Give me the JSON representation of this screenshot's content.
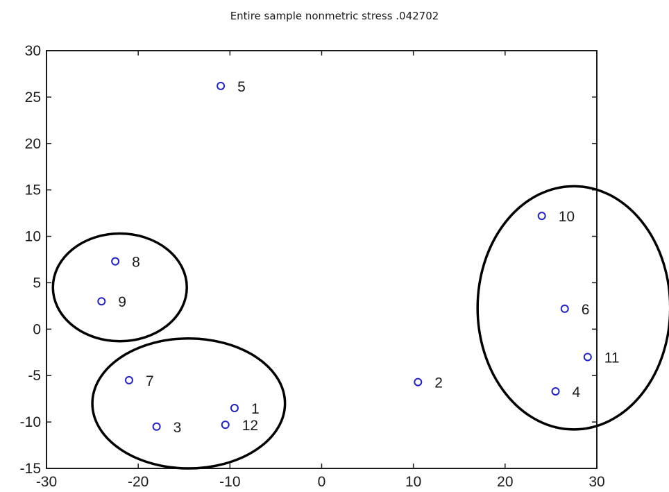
{
  "chart_data": {
    "type": "scatter",
    "title": "Entire sample nonmetric stress .042702",
    "xlabel": "",
    "ylabel": "",
    "xlim": [
      -30,
      30
    ],
    "ylim": [
      -15,
      30
    ],
    "xticks": [
      -30,
      -20,
      -10,
      0,
      10,
      20,
      30
    ],
    "yticks": [
      -15,
      -10,
      -5,
      0,
      5,
      10,
      15,
      20,
      25,
      30
    ],
    "grid": false,
    "marker_color": "#2222cc",
    "marker": "circle-open",
    "points": [
      {
        "label": "1",
        "x": -9.5,
        "y": -8.5
      },
      {
        "label": "2",
        "x": 10.5,
        "y": -5.7
      },
      {
        "label": "3",
        "x": -18.0,
        "y": -10.5
      },
      {
        "label": "4",
        "x": 25.5,
        "y": -6.7
      },
      {
        "label": "5",
        "x": -11.0,
        "y": 26.2
      },
      {
        "label": "6",
        "x": 26.5,
        "y": 2.2
      },
      {
        "label": "7",
        "x": -21.0,
        "y": -5.5
      },
      {
        "label": "8",
        "x": -22.5,
        "y": 7.3
      },
      {
        "label": "9",
        "x": -24.0,
        "y": 3.0
      },
      {
        "label": "10",
        "x": 24.0,
        "y": 12.2
      },
      {
        "label": "11",
        "x": 29.0,
        "y": -3.0
      },
      {
        "label": "12",
        "x": -10.5,
        "y": -10.3
      }
    ],
    "annotations": [
      {
        "type": "ellipse",
        "cx": -22.0,
        "cy": 4.5,
        "rx": 7.3,
        "ry": 5.8,
        "color": "#000000"
      },
      {
        "type": "ellipse",
        "cx": -14.5,
        "cy": -8.0,
        "rx": 10.5,
        "ry": 7.0,
        "color": "#000000"
      },
      {
        "type": "ellipse",
        "cx": 27.5,
        "cy": 2.3,
        "rx": 10.5,
        "ry": 13.1,
        "color": "#000000"
      }
    ]
  }
}
